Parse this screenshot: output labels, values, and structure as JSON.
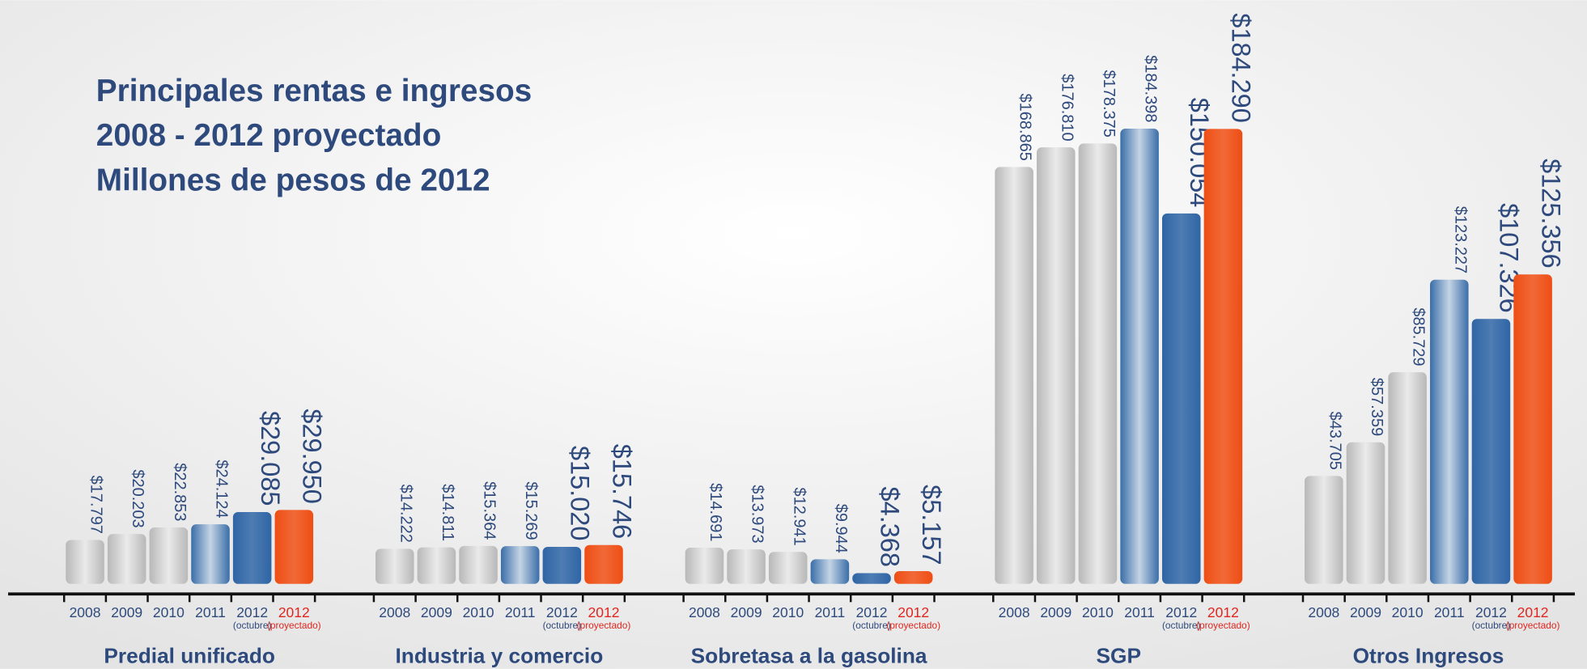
{
  "title": [
    "Principales rentas e ingresos",
    "2008 - 2012 proyectado",
    "Millones de pesos de 2012"
  ],
  "chart_data": [
    {
      "type": "bar",
      "title": "Predial unificado",
      "categories": [
        "2008",
        "2009",
        "2010",
        "2011",
        "2012",
        "2012"
      ],
      "category_notes": [
        null,
        null,
        null,
        null,
        "(octubre)",
        "(proyectado)"
      ],
      "values": [
        17797,
        20203,
        22853,
        24124,
        29085,
        29950
      ],
      "value_labels": [
        "$17.797",
        "$20.203",
        "$22.853",
        "$24.124",
        "$29.085",
        "$29.950"
      ],
      "colors": [
        "#b8b8b8",
        "#b8b8b8",
        "#b8b8b8",
        "#3a6ea8",
        "#2f65a5",
        "#ee4e14"
      ]
    },
    {
      "type": "bar",
      "title": "Industria y comercio",
      "categories": [
        "2008",
        "2009",
        "2010",
        "2011",
        "2012",
        "2012"
      ],
      "category_notes": [
        null,
        null,
        null,
        null,
        "(octubre)",
        "(proyectado)"
      ],
      "values": [
        14222,
        14811,
        15364,
        15269,
        15020,
        15746
      ],
      "value_labels": [
        "$14.222",
        "$14.811",
        "$15.364",
        "$15.269",
        "$15.020",
        "$15.746"
      ],
      "colors": [
        "#b8b8b8",
        "#b8b8b8",
        "#b8b8b8",
        "#3a6ea8",
        "#2f65a5",
        "#ee4e14"
      ]
    },
    {
      "type": "bar",
      "title": "Sobretasa a la gasolina",
      "categories": [
        "2008",
        "2009",
        "2010",
        "2011",
        "2012",
        "2012"
      ],
      "category_notes": [
        null,
        null,
        null,
        null,
        "(octubre)",
        "(proyectado)"
      ],
      "values": [
        14691,
        13973,
        12941,
        9944,
        4368,
        5157
      ],
      "value_labels": [
        "$14.691",
        "$13.973",
        "$12.941",
        "$9.944",
        "$4.368",
        "$5.157"
      ],
      "colors": [
        "#b8b8b8",
        "#b8b8b8",
        "#b8b8b8",
        "#3a6ea8",
        "#2f65a5",
        "#ee4e14"
      ]
    },
    {
      "type": "bar",
      "title": "SGP",
      "categories": [
        "2008",
        "2009",
        "2010",
        "2011",
        "2012",
        "2012"
      ],
      "category_notes": [
        null,
        null,
        null,
        null,
        "(octubre)",
        "(proyectado)"
      ],
      "values": [
        168865,
        176810,
        178375,
        184398,
        150054,
        184290
      ],
      "value_labels": [
        "$168.865",
        "$176.810",
        "$178.375",
        "$184.398",
        "$150.054",
        "$184.290"
      ],
      "colors": [
        "#b8b8b8",
        "#b8b8b8",
        "#b8b8b8",
        "#3a6ea8",
        "#2f65a5",
        "#ee4e14"
      ]
    },
    {
      "type": "bar",
      "title": "Otros Ingresos",
      "categories": [
        "2008",
        "2009",
        "2010",
        "2011",
        "2012",
        "2012"
      ],
      "category_notes": [
        null,
        null,
        null,
        null,
        "(octubre)",
        "(proyectado)"
      ],
      "values": [
        43705,
        57359,
        85729,
        123227,
        107326,
        125356
      ],
      "value_labels": [
        "$43.705",
        "$57.359",
        "$85.729",
        "$123.227",
        "$107.326",
        "$125.356"
      ],
      "colors": [
        "#b8b8b8",
        "#b8b8b8",
        "#b8b8b8",
        "#3a6ea8",
        "#2f65a5",
        "#ee4e14"
      ]
    }
  ]
}
